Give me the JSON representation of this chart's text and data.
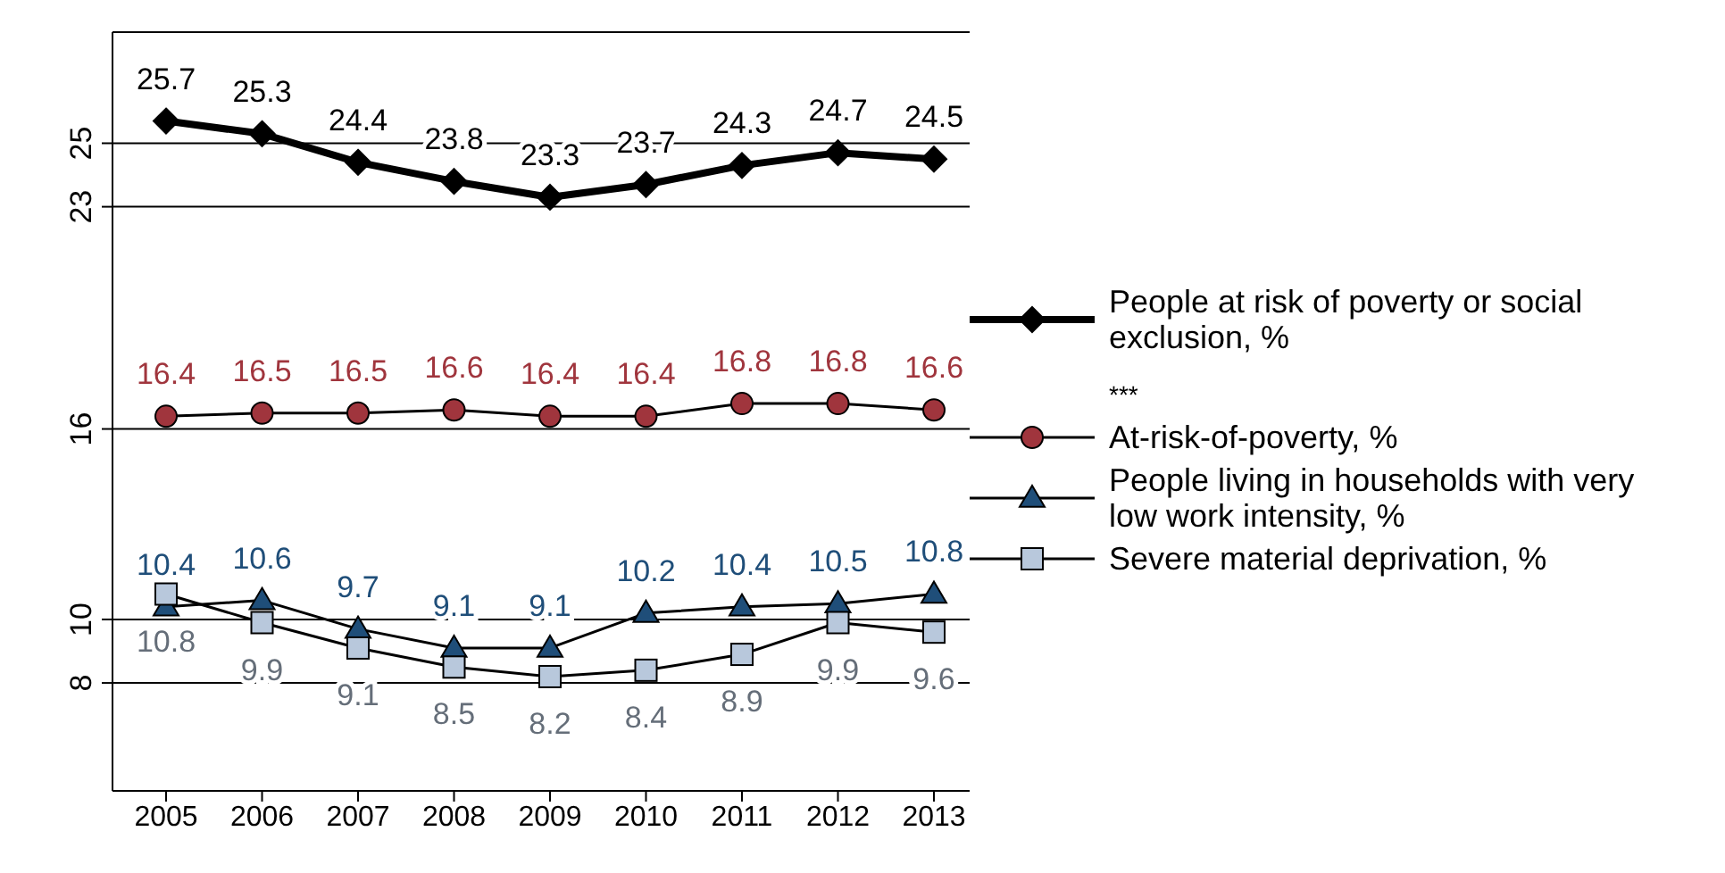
{
  "chart_data": {
    "type": "line",
    "categories": [
      "2005",
      "2006",
      "2007",
      "2008",
      "2009",
      "2010",
      "2011",
      "2012",
      "2013"
    ],
    "series": [
      {
        "name": "People at risk of poverty or social exclusion, %",
        "color": "#000000",
        "marker": "diamond",
        "values": [
          25.7,
          25.3,
          24.4,
          23.8,
          23.3,
          23.7,
          24.3,
          24.7,
          24.5
        ]
      },
      {
        "name": "At-risk-of-poverty, %",
        "color": "#a0353d",
        "marker": "circle",
        "values": [
          16.4,
          16.5,
          16.5,
          16.6,
          16.4,
          16.4,
          16.8,
          16.8,
          16.6
        ]
      },
      {
        "name": "People living in households with very low work intensity, %",
        "color": "#1f4e79",
        "marker": "triangle",
        "values": [
          10.4,
          10.6,
          9.7,
          9.1,
          9.1,
          10.2,
          10.4,
          10.5,
          10.8
        ]
      },
      {
        "name": "Severe material deprivation, %",
        "color": "#b8c8dc",
        "marker": "square",
        "values": [
          10.8,
          9.9,
          9.1,
          8.5,
          8.2,
          8.4,
          8.9,
          9.9,
          9.6
        ]
      }
    ],
    "ylim": [
      4.6,
      28.5
    ],
    "yticks": [
      8,
      10,
      16,
      23,
      25
    ],
    "grid": "y",
    "legend": "right",
    "data_labels": true,
    "annotations": [
      "***"
    ]
  }
}
